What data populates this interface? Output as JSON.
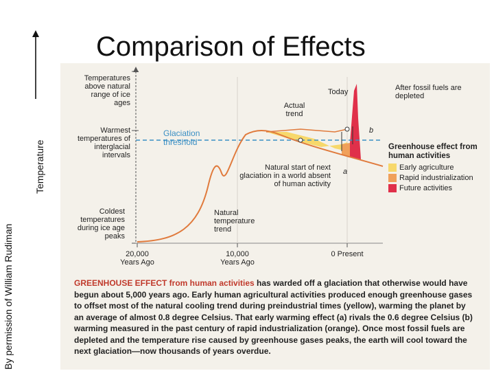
{
  "title": "Comparison of Effects",
  "credit": "By permission of William Rudiman",
  "y_axis_label": "Temperature",
  "labels": {
    "above_range": "Temperatures above natural range of ice ages",
    "warmest": "Warmest temperatures of interglacial intervals",
    "coldest": "Coldest temperatures during ice age peaks",
    "glaciation": "Glaciation threshold",
    "today": "Today",
    "actual_trend": "Actual trend",
    "after_fossil": "After fossil fuels are depleted",
    "point_a": "a",
    "point_b": "b",
    "natural_start": "Natural start of next glaciation in a world absent of human activity",
    "natural_trend": "Natural temperature trend"
  },
  "legend": {
    "title": "Greenhouse effect from human activities",
    "items": [
      {
        "label": "Early agriculture",
        "color": "#f7d86b"
      },
      {
        "label": "Rapid industrialization",
        "color": "#f0a05a"
      },
      {
        "label": "Future activities",
        "color": "#e0304a"
      }
    ]
  },
  "x_ticks": [
    {
      "label": "20,000 Years Ago"
    },
    {
      "label": "10,000 Years Ago"
    },
    {
      "label": "0 Present"
    }
  ],
  "caption": {
    "lead": "GREENHOUSE EFFECT from human activities",
    "body": " has warded off a glaciation that otherwise would have begun about 5,000 years ago. Early human agricultural activities produced enough greenhouse gases to offset most of the natural cooling trend during preindustrial times (yellow), warming the planet by an average of almost 0.8 degree Celsius. That early warming effect (a) rivals the 0.6 degree Celsius (b) warming measured in the past century of rapid industrialization (orange). Once most fossil fuels are depleted and the temperature rise caused by greenhouse gases peaks, the earth will cool toward the next glaciation—now thousands of years overdue."
  },
  "colors": {
    "curve": "#e07a3c",
    "threshold": "#3a8fc4",
    "glaciation_text": "#3a8fc4",
    "caption_lead": "#c0392b"
  }
}
